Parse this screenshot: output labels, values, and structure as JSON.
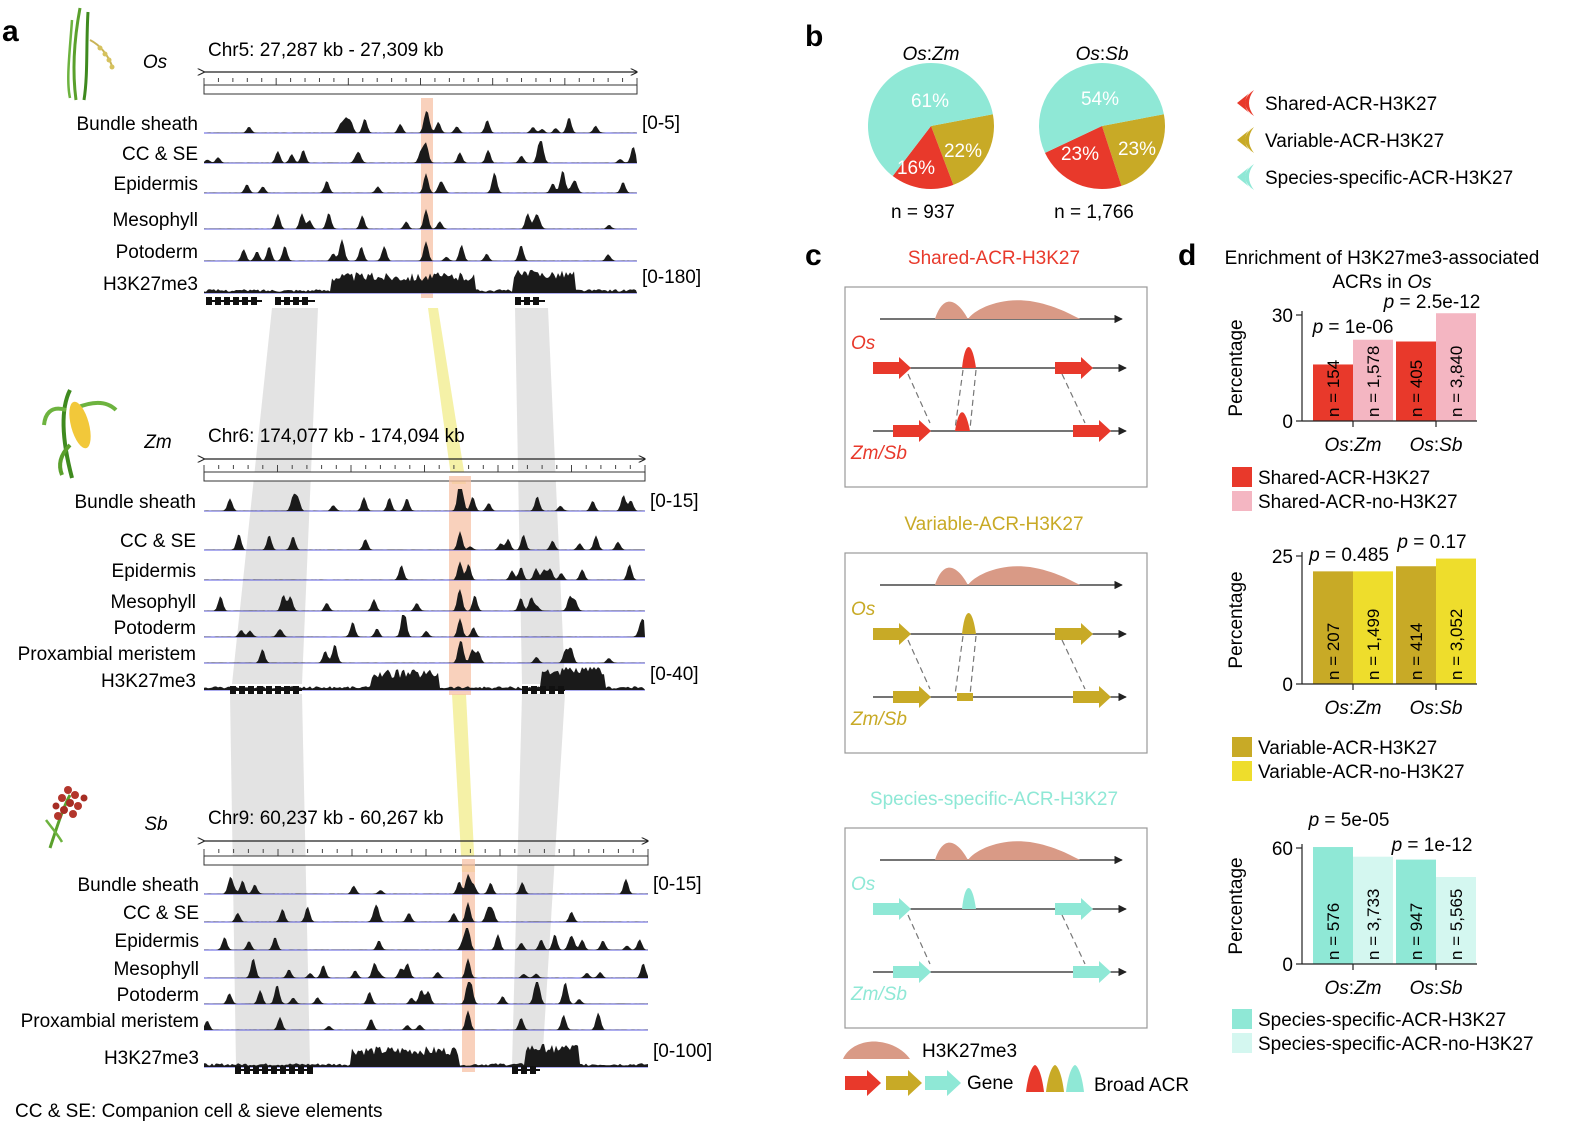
{
  "panel_a": {
    "letter": "a",
    "footnote": "CC & SE: Companion cell & sieve elements",
    "species": [
      {
        "abbr": "Os",
        "coords": "Chr5: 27,287 kb - 27,309 kb",
        "tracks": [
          "Bundle sheath",
          "CC & SE",
          "Epidermis",
          "Mesophyll",
          "Potoderm",
          "H3K27me3"
        ],
        "scale_atac": "[0-5]",
        "scale_h3k": "[0-180]"
      },
      {
        "abbr": "Zm",
        "coords": "Chr6: 174,077 kb - 174,094 kb",
        "tracks": [
          "Bundle sheath",
          "CC & SE",
          "Epidermis",
          "Mesophyll",
          "Potoderm",
          "Proxambial meristem",
          "H3K27me3"
        ],
        "scale_atac": "[0-15]",
        "scale_h3k": "[0-40]"
      },
      {
        "abbr": "Sb",
        "coords": "Chr9: 60,237 kb - 60,267 kb",
        "tracks": [
          "Bundle sheath",
          "CC & SE",
          "Epidermis",
          "Mesophyll",
          "Potoderm",
          "Proxambial meristem",
          "H3K27me3"
        ],
        "scale_atac": "[0-15]",
        "scale_h3k": "[0-100]"
      }
    ]
  },
  "panel_b": {
    "letter": "b",
    "legend": [
      "Shared-ACR-H3K27",
      "Variable-ACR-H3K27",
      "Species-specific-ACR-H3K27"
    ],
    "colors": {
      "shared": "#e8392b",
      "variable": "#c8aa26",
      "specific": "#8fe8d6"
    },
    "pies": [
      {
        "title_sp": "Os",
        "title_sep": ":",
        "title_sp2": "Zm",
        "n": "n = 937",
        "slices": [
          {
            "label": "61%",
            "value": 61
          },
          {
            "label": "22%",
            "value": 22
          },
          {
            "label": "16%",
            "value": 16
          }
        ]
      },
      {
        "title_sp": "Os",
        "title_sep": ":",
        "title_sp2": "Sb",
        "n": "n = 1,766",
        "slices": [
          {
            "label": "54%",
            "value": 54
          },
          {
            "label": "23%",
            "value": 23
          },
          {
            "label": "23%",
            "value": 23
          }
        ]
      }
    ]
  },
  "panel_c": {
    "letter": "c",
    "boxes": [
      {
        "title": "Shared-ACR-H3K27",
        "color": "#e8392b",
        "top": "Os",
        "bottom": "Zm/Sb"
      },
      {
        "title": "Variable-ACR-H3K27",
        "color": "#c8aa26",
        "top": "Os",
        "bottom": "Zm/Sb"
      },
      {
        "title": "Species-specific-ACR-H3K27",
        "color": "#8fe8d6",
        "top": "Os",
        "bottom": "Zm/Sb"
      }
    ],
    "legend": {
      "h3k": "H3K27me3",
      "gene": "Gene",
      "acr": "Broad ACR"
    }
  },
  "panel_d": {
    "letter": "d",
    "title_line1": "Enrichment of H3K27me3-associated",
    "title_line2": "ACRs in ",
    "title_sp": "Os",
    "ylabel": "Percentage",
    "xcats": [
      {
        "sp1": "Os",
        "sp2": "Zm"
      },
      {
        "sp1": "Os",
        "sp2": "Sb"
      }
    ]
  },
  "chart_data": [
    {
      "type": "pie",
      "title": "Os:Zm",
      "n": "n = 937",
      "labels": [
        "Species-specific-ACR-H3K27",
        "Variable-ACR-H3K27",
        "Shared-ACR-H3K27"
      ],
      "values": [
        61,
        22,
        16
      ]
    },
    {
      "type": "pie",
      "title": "Os:Sb",
      "n": "n = 1,766",
      "labels": [
        "Species-specific-ACR-H3K27",
        "Variable-ACR-H3K27",
        "Shared-ACR-H3K27"
      ],
      "values": [
        54,
        23,
        23
      ]
    },
    {
      "type": "bar",
      "ylabel": "Percentage",
      "ylim": [
        0,
        32
      ],
      "yticks": [
        0,
        30
      ],
      "categories": [
        "Os:Zm",
        "Os:Sb"
      ],
      "series": [
        {
          "name": "Shared-ACR-H3K27",
          "color": "#e8392b",
          "values": [
            16,
            22.5
          ],
          "labels": [
            "n = 154",
            "n = 405"
          ]
        },
        {
          "name": "Shared-ACR-no-H3K27",
          "color": "#f4b6c2",
          "values": [
            23,
            30.5
          ],
          "labels": [
            "n = 1,578",
            "n = 3,840"
          ]
        }
      ],
      "pvalues": [
        "p = 1e-06",
        "p = 2.5e-12"
      ]
    },
    {
      "type": "bar",
      "ylabel": "Percentage",
      "ylim": [
        0,
        26
      ],
      "yticks": [
        0,
        25
      ],
      "categories": [
        "Os:Zm",
        "Os:Sb"
      ],
      "series": [
        {
          "name": "Variable-ACR-H3K27",
          "color": "#c8aa26",
          "values": [
            22,
            23
          ],
          "labels": [
            "n = 207",
            "n = 414"
          ]
        },
        {
          "name": "Variable-ACR-no-H3K27",
          "color": "#eedd2c",
          "values": [
            22,
            24.5
          ],
          "labels": [
            "n = 1,499",
            "n = 3,052"
          ]
        }
      ],
      "pvalues": [
        "p = 0.485",
        "p = 0.17"
      ]
    },
    {
      "type": "bar",
      "ylabel": "Percentage",
      "ylim": [
        0,
        66
      ],
      "yticks": [
        0,
        60
      ],
      "categories": [
        "Os:Zm",
        "Os:Sb"
      ],
      "series": [
        {
          "name": "Species-specific-ACR-H3K27",
          "color": "#8fe8d6",
          "values": [
            60.5,
            54
          ],
          "labels": [
            "n = 576",
            "n = 947"
          ]
        },
        {
          "name": "Species-specific-ACR-no-H3K27",
          "color": "#d4f7f0",
          "values": [
            55.5,
            45
          ],
          "labels": [
            "n = 3,733",
            "n = 5,565"
          ]
        }
      ],
      "pvalues": [
        "p = 5e-05",
        "p = 1e-12"
      ]
    }
  ]
}
